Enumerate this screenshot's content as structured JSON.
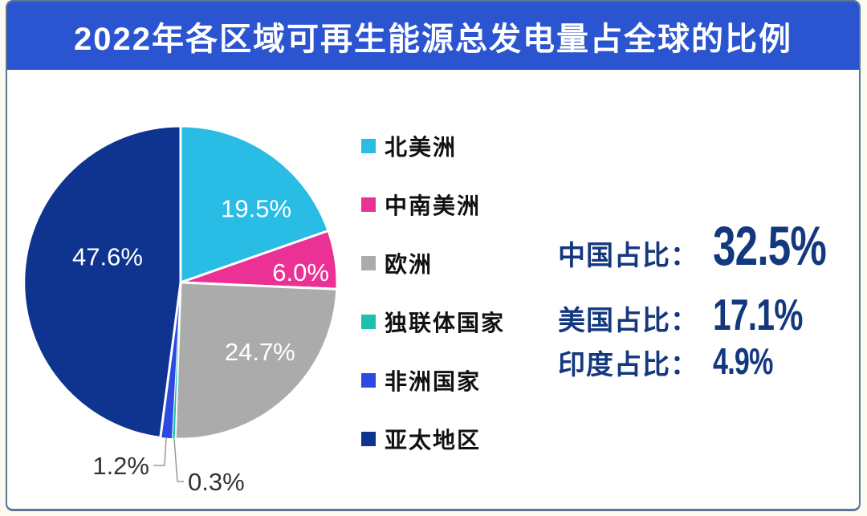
{
  "title": "2022年各区域可再生能源总发电量占全球的比例",
  "colors": {
    "title_bar": "#2B55D0",
    "title_text": "#FFFFFF",
    "card_border": "#5A7694",
    "stat_text": "#14387E",
    "pie_label_text": "#FFFFFF",
    "outside_label_text": "#333333",
    "leader_line": "#9A9A9A"
  },
  "chart_data": {
    "type": "pie",
    "title": "2022年各区域可再生能源总发电量占全球的比例",
    "unit": "%",
    "start_angle_deg": 0,
    "direction": "clockwise",
    "legend_position": "right",
    "slices": [
      {
        "label": "北美洲",
        "value": 19.5,
        "display": "19.5%",
        "color": "#29BCE4",
        "label_placement": "inside"
      },
      {
        "label": "中南美洲",
        "value": 6.0,
        "display": "6.0%",
        "color": "#EB3096",
        "label_placement": "inside"
      },
      {
        "label": "欧洲",
        "value": 24.7,
        "display": "24.7%",
        "color": "#ABABAB",
        "label_placement": "inside"
      },
      {
        "label": "独联体国家",
        "value": 0.3,
        "display": "0.3%",
        "color": "#1FBFAF",
        "label_placement": "outside"
      },
      {
        "label": "非洲国家",
        "value": 1.2,
        "display": "1.2%",
        "color": "#2C4ADF",
        "label_placement": "outside"
      },
      {
        "label": "亚太地区",
        "value": 47.6,
        "display": "47.6%",
        "color": "#0E3490",
        "label_placement": "inside"
      }
    ]
  },
  "stats": [
    {
      "label": "中国占比：",
      "value": "32.5%"
    },
    {
      "label": "美国占比：",
      "value": "17.1%"
    },
    {
      "label": "印度占比：",
      "value": "4.9%"
    }
  ]
}
